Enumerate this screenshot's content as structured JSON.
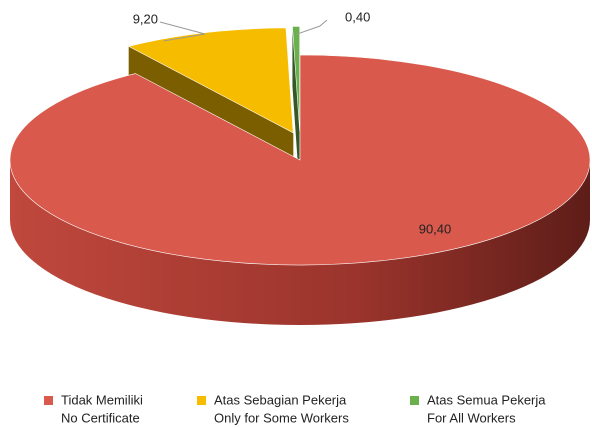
{
  "chart_data": {
    "type": "pie",
    "categories": [
      [
        "Tidak Memiliki",
        "No Certificate"
      ],
      [
        "Atas Sebagian Pekerja",
        "Only for Some Workers"
      ],
      [
        "Atas Semua Pekerja",
        "For All Workers"
      ]
    ],
    "values": [
      90.4,
      9.2,
      0.4
    ],
    "value_labels": [
      "90,40",
      "9,20",
      "0,40"
    ],
    "colors": [
      "#d9594c",
      "#f6bc00",
      "#6ab04c"
    ]
  }
}
